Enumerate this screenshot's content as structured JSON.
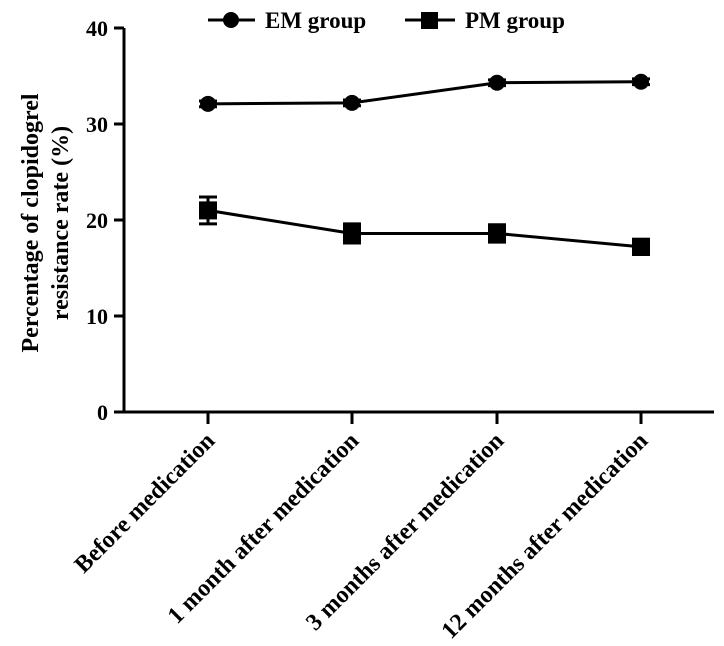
{
  "chart_data": {
    "type": "line",
    "title": "",
    "xlabel": "",
    "ylabel_lines": [
      "Percentage of clopidogrel",
      "resistance rate (%)"
    ],
    "categories": [
      "Before medication",
      "1 month after medication",
      "3 months after medication",
      "12 months after medication"
    ],
    "ylim": [
      0,
      40
    ],
    "yticks": [
      0,
      10,
      20,
      30,
      40
    ],
    "grid": false,
    "legend_position": "top",
    "series": [
      {
        "name": "EM group",
        "marker": "circle",
        "values": [
          32.1,
          32.2,
          34.3,
          34.4
        ],
        "errors": [
          0.3,
          0.3,
          0.3,
          0.3
        ]
      },
      {
        "name": "PM group",
        "marker": "square",
        "values": [
          21.0,
          18.6,
          18.6,
          17.2
        ],
        "errors": [
          1.4,
          1.0,
          0.9,
          0.8
        ]
      }
    ],
    "colors": {
      "line": "#000000"
    }
  }
}
